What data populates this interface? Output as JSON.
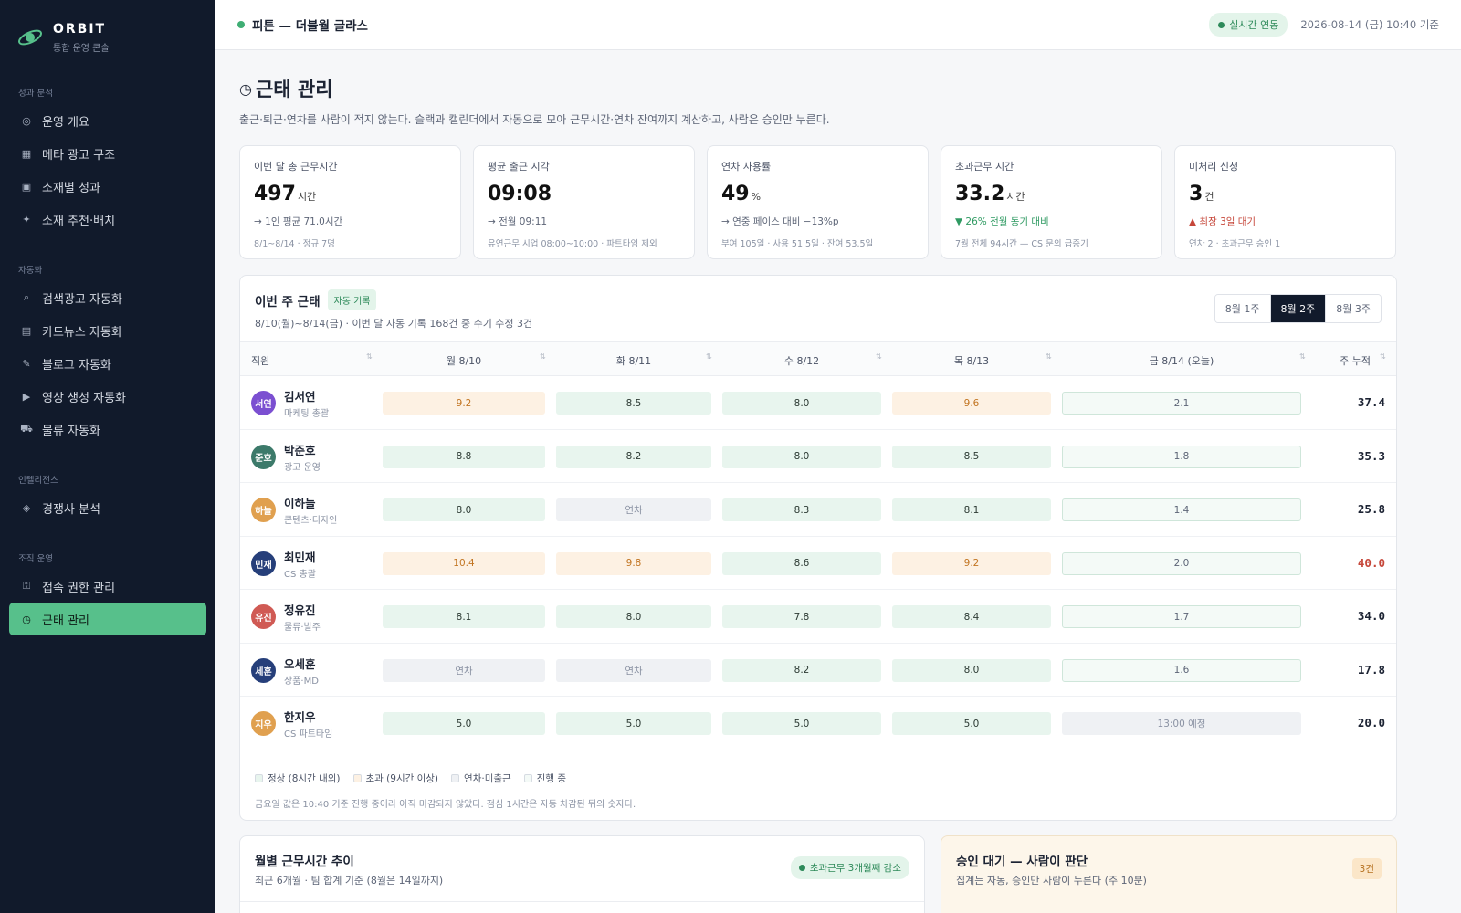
{
  "brand": {
    "name": "ORBIT",
    "subtitle": "통합 운영 콘솔"
  },
  "sidebar": {
    "sections": [
      {
        "label": "성과 분석",
        "items": [
          {
            "icon": "◎",
            "icon_name": "target-icon",
            "label": "운영 개요"
          },
          {
            "icon": "▦",
            "icon_name": "grid-icon",
            "label": "메타 광고 구조"
          },
          {
            "icon": "▣",
            "icon_name": "square-icon",
            "label": "소재별 성과"
          },
          {
            "icon": "✦",
            "icon_name": "sparkle-icon",
            "label": "소재 추천·배치"
          }
        ]
      },
      {
        "label": "자동화",
        "items": [
          {
            "icon": "⌕",
            "icon_name": "search-icon",
            "label": "검색광고 자동화"
          },
          {
            "icon": "▤",
            "icon_name": "cards-icon",
            "label": "카드뉴스 자동화"
          },
          {
            "icon": "✎",
            "icon_name": "pencil-icon",
            "label": "블로그 자동화"
          },
          {
            "icon": "▶",
            "icon_name": "play-icon",
            "label": "영상 생성 자동화"
          },
          {
            "icon": "⛟",
            "icon_name": "truck-icon",
            "label": "물류 자동화"
          }
        ]
      },
      {
        "label": "인텔리전스",
        "items": [
          {
            "icon": "◈",
            "icon_name": "diamond-icon",
            "label": "경쟁사 분석"
          }
        ]
      },
      {
        "label": "조직 운영",
        "items": [
          {
            "icon": "⚿",
            "icon_name": "key-icon",
            "label": "접속 권한 관리"
          },
          {
            "icon": "◷",
            "icon_name": "clock-icon",
            "label": "근태 관리",
            "active": true
          }
        ]
      }
    ]
  },
  "topbar": {
    "title": "피튼 — 더블월 글라스",
    "live_label": "실시간 연동",
    "timestamp": "2026-08-14 (금) 10:40 기준"
  },
  "page": {
    "title": "근태 관리",
    "description": "출근·퇴근·연차를 사람이 적지 않는다. 슬랙과 캘린더에서 자동으로 모아 근무시간·연차 잔여까지 계산하고, 사람은 승인만 누른다."
  },
  "kpis": [
    {
      "label": "이번 달 총 근무시간",
      "value": "497",
      "unit": "시간",
      "sub": "→ 1인 평균 71.0시간",
      "sub_tone": "",
      "foot": "8/1~8/14 · 정규 7명"
    },
    {
      "label": "평균 출근 시각",
      "value": "09:08",
      "unit": "",
      "sub": "→ 전월 09:11",
      "sub_tone": "",
      "foot": "유연근무 시업 08:00~10:00 · 파트타임 제외"
    },
    {
      "label": "연차 사용률",
      "value": "49",
      "unit": "%",
      "sub": "→ 연중 페이스 대비 −13%p",
      "sub_tone": "",
      "foot": "부여 105일 · 사용 51.5일 · 잔여 53.5일"
    },
    {
      "label": "초과근무 시간",
      "value": "33.2",
      "unit": "시간",
      "sub": "▼ 26% 전월 동기 대비",
      "sub_tone": "green",
      "foot": "7월 전체 94시간 — CS 문의 급증기"
    },
    {
      "label": "미처리 신청",
      "value": "3",
      "unit": "건",
      "sub": "▲ 최장 3일 대기",
      "sub_tone": "red",
      "foot": "연차 2 · 초과근무 승인 1"
    }
  ],
  "week": {
    "title": "이번 주 근태",
    "auto_badge": "자동 기록",
    "subtitle": "8/10(월)~8/14(금) · 이번 달 자동 기록 168건 중 수기 수정 3건",
    "tabs": [
      {
        "label": "8월 1주",
        "active": false
      },
      {
        "label": "8월 2주",
        "active": true
      },
      {
        "label": "8월 3주",
        "active": false
      }
    ],
    "columns": [
      "직원",
      "월 8/10",
      "화 8/11",
      "수 8/12",
      "목 8/13",
      "금 8/14 (오늘)",
      "주 누적"
    ],
    "rows": [
      {
        "initials": "서연",
        "color": "#7b4fd1",
        "name": "김서연",
        "role": "마케팅 총괄",
        "cells": [
          [
            "9.2",
            "over"
          ],
          [
            "8.5",
            "normal"
          ],
          [
            "8.0",
            "normal"
          ],
          [
            "9.6",
            "over"
          ],
          [
            "2.1",
            "prog"
          ]
        ],
        "total": "37.4",
        "warn": false
      },
      {
        "initials": "준호",
        "color": "#3c7a6a",
        "name": "박준호",
        "role": "광고 운영",
        "cells": [
          [
            "8.8",
            "normal"
          ],
          [
            "8.2",
            "normal"
          ],
          [
            "8.0",
            "normal"
          ],
          [
            "8.5",
            "normal"
          ],
          [
            "1.8",
            "prog"
          ]
        ],
        "total": "35.3",
        "warn": false
      },
      {
        "initials": "하늘",
        "color": "#e0a04f",
        "name": "이하늘",
        "role": "콘텐츠·디자인",
        "cells": [
          [
            "8.0",
            "normal"
          ],
          [
            "연차",
            "off"
          ],
          [
            "8.3",
            "normal"
          ],
          [
            "8.1",
            "normal"
          ],
          [
            "1.4",
            "prog"
          ]
        ],
        "total": "25.8",
        "warn": false
      },
      {
        "initials": "민재",
        "color": "#263f7a",
        "name": "최민재",
        "role": "CS 총괄",
        "cells": [
          [
            "10.4",
            "over"
          ],
          [
            "9.8",
            "over"
          ],
          [
            "8.6",
            "normal"
          ],
          [
            "9.2",
            "over"
          ],
          [
            "2.0",
            "prog"
          ]
        ],
        "total": "40.0",
        "warn": true
      },
      {
        "initials": "유진",
        "color": "#d05a54",
        "name": "정유진",
        "role": "물류·발주",
        "cells": [
          [
            "8.1",
            "normal"
          ],
          [
            "8.0",
            "normal"
          ],
          [
            "7.8",
            "normal"
          ],
          [
            "8.4",
            "normal"
          ],
          [
            "1.7",
            "prog"
          ]
        ],
        "total": "34.0",
        "warn": false
      },
      {
        "initials": "세훈",
        "color": "#263f7a",
        "name": "오세훈",
        "role": "상품·MD",
        "cells": [
          [
            "연차",
            "off"
          ],
          [
            "연차",
            "off"
          ],
          [
            "8.2",
            "normal"
          ],
          [
            "8.0",
            "normal"
          ],
          [
            "1.6",
            "prog"
          ]
        ],
        "total": "17.8",
        "warn": false
      },
      {
        "initials": "지우",
        "color": "#e0a04f",
        "name": "한지우",
        "role": "CS 파트타임",
        "cells": [
          [
            "5.0",
            "normal"
          ],
          [
            "5.0",
            "normal"
          ],
          [
            "5.0",
            "normal"
          ],
          [
            "5.0",
            "normal"
          ],
          [
            "13:00 예정",
            "plan"
          ]
        ],
        "total": "20.0",
        "warn": false
      }
    ],
    "legend": [
      {
        "label": "정상 (8시간 내외)",
        "color": "#e8f5ee"
      },
      {
        "label": "초과 (9시간 이상)",
        "color": "#fdf1e3"
      },
      {
        "label": "연차·미출근",
        "color": "#eff1f4"
      },
      {
        "label": "진행 중",
        "color": "#f4faf7"
      }
    ],
    "note": "금요일 값은 10:40 기준 진행 중이라 아직 마감되지 않았다. 점심 1시간은 자동 차감된 뒤의 숫자다."
  },
  "trend": {
    "title": "월별 근무시간 추이",
    "subtitle": "최근 6개월 · 팀 합계 기준 (8월은 14일까지)",
    "badge": "초과근무 3개월째 감소"
  },
  "approve": {
    "title": "승인 대기 — 사람이 판단",
    "subtitle": "집계는 자동, 승인만 사람이 누른다 (주 10분)",
    "count": "3건"
  }
}
